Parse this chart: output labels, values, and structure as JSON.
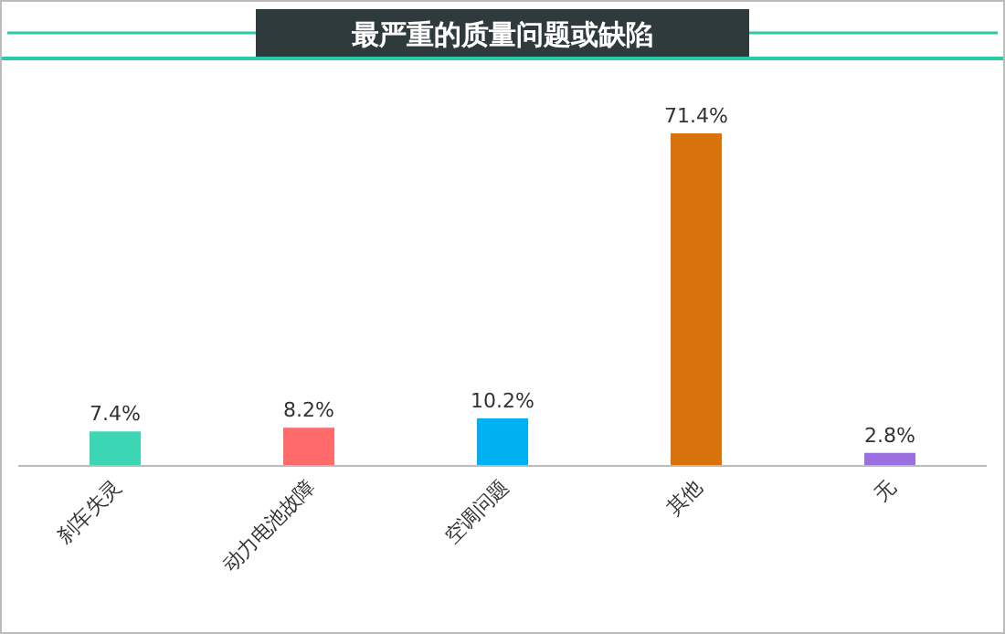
{
  "chart_data": {
    "type": "bar",
    "title": "最严重的质量问题或缺陷",
    "categories": [
      "刹车失灵",
      "动力电池故障",
      "空调问题",
      "其他",
      "无"
    ],
    "values": [
      7.4,
      8.2,
      10.2,
      71.4,
      2.8
    ],
    "colors": [
      "#3dd6b5",
      "#ff6b6b",
      "#00b0f0",
      "#d9720a",
      "#9b6fe0"
    ],
    "value_labels": [
      "7.4%",
      "8.2%",
      "10.2%",
      "71.4%",
      "2.8%"
    ]
  }
}
